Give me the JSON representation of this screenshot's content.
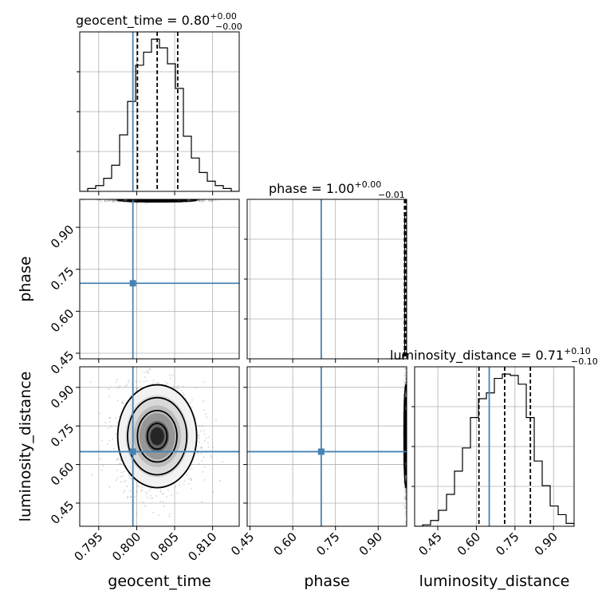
{
  "chart_data": {
    "type": "corner",
    "parameters": [
      "geocent_time",
      "phase",
      "luminosity_distance"
    ],
    "truths": {
      "geocent_time": 0.7995,
      "phase": 0.7,
      "luminosity_distance": 0.65
    },
    "panels": {
      "geocent_time": {
        "title": "geocent_time = 0.80",
        "title_sup": "+0.00",
        "title_sub": "−0.00",
        "xlim": [
          0.7925,
          0.8135
        ],
        "ylim": [
          0,
          1.1
        ],
        "xticks": [
          0.795,
          0.8,
          0.805,
          0.81
        ],
        "xtick_labels": [
          "0.795",
          "0.800",
          "0.805",
          "0.810"
        ],
        "xlabel": "geocent_time",
        "quantiles": [
          0.8001,
          0.8027,
          0.8054
        ],
        "hist_edges": [
          0.7925,
          0.79355,
          0.7946,
          0.79565,
          0.7967,
          0.79775,
          0.7988,
          0.79985,
          0.8009,
          0.80195,
          0.803,
          0.80405,
          0.8051,
          0.80615,
          0.8072,
          0.80825,
          0.8093,
          0.81035,
          0.8114,
          0.81245,
          0.8135
        ],
        "hist_counts": [
          0,
          0.02,
          0.04,
          0.09,
          0.18,
          0.39,
          0.62,
          0.87,
          0.96,
          1.05,
          0.99,
          0.88,
          0.71,
          0.38,
          0.23,
          0.13,
          0.07,
          0.04,
          0.02,
          0,
          0
        ]
      },
      "phase": {
        "title": "phase = 1.00",
        "title_sup": "+0.00",
        "title_sub": "−0.01",
        "xlim": [
          0.44,
          1.0
        ],
        "ylim": [
          0,
          1.1
        ],
        "xticks": [
          0.45,
          0.6,
          0.75,
          0.9
        ],
        "xtick_labels": [
          "0.45",
          "0.60",
          "0.75",
          "0.90"
        ],
        "xlabel": "phase",
        "quantiles": [
          0.9925,
          0.9965,
          0.999
        ],
        "hist_edges": [
          0.965,
          0.972,
          0.979,
          0.986,
          0.993,
          1.0
        ],
        "hist_counts": [
          0,
          0,
          0,
          0.03,
          1.0
        ]
      },
      "luminosity_distance": {
        "title": "luminosity_distance = 0.71",
        "title_sup": "+0.10",
        "title_sub": "−0.10",
        "xlim": [
          0.36,
          0.98
        ],
        "ylim": [
          0,
          1.1
        ],
        "xticks": [
          0.45,
          0.6,
          0.75,
          0.9
        ],
        "xtick_labels": [
          "0.45",
          "0.60",
          "0.75",
          "0.90"
        ],
        "xlabel": "luminosity_distance",
        "quantiles": [
          0.61,
          0.71,
          0.81
        ],
        "hist_edges": [
          0.36,
          0.391,
          0.422,
          0.453,
          0.484,
          0.515,
          0.546,
          0.577,
          0.608,
          0.639,
          0.67,
          0.701,
          0.732,
          0.763,
          0.794,
          0.825,
          0.856,
          0.887,
          0.918,
          0.949,
          0.98
        ],
        "hist_counts": [
          0,
          0.01,
          0.04,
          0.11,
          0.22,
          0.38,
          0.54,
          0.75,
          0.88,
          0.92,
          1.02,
          1.05,
          1.04,
          0.98,
          0.75,
          0.45,
          0.28,
          0.14,
          0.08,
          0.02
        ]
      }
    },
    "axes": {
      "phase_y": {
        "ylim": [
          0.43,
          1.0
        ],
        "yticks": [
          0.45,
          0.6,
          0.75,
          0.9
        ],
        "ytick_labels": [
          "0.45",
          "0.60",
          "0.75",
          "0.90"
        ],
        "ylabel": "phase"
      },
      "dist_y": {
        "ylim": [
          0.36,
          0.98
        ],
        "yticks": [
          0.45,
          0.6,
          0.75,
          0.9
        ],
        "ytick_labels": [
          "0.45",
          "0.60",
          "0.75",
          "0.90"
        ],
        "ylabel": "luminosity_distance"
      }
    },
    "grid": true
  }
}
